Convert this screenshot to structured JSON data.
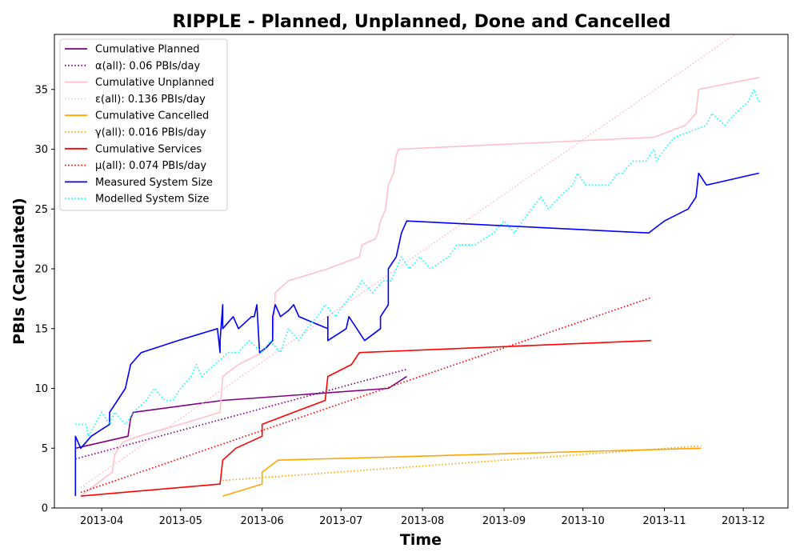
{
  "chart_data": {
    "type": "line",
    "title": "RIPPLE - Planned, Unplanned, Done  and Cancelled",
    "xlabel": "Time",
    "ylabel": "PBIs (Calculated)",
    "xlim": [
      "2013-03-14",
      "2013-12-18"
    ],
    "ylim": [
      0,
      39.6
    ],
    "x_ticks": [
      "2013-04-01",
      "2013-05-01",
      "2013-06-01",
      "2013-07-01",
      "2013-08-01",
      "2013-09-01",
      "2013-10-01",
      "2013-11-01",
      "2013-12-01"
    ],
    "x_tick_labels": [
      "2013-04",
      "2013-05",
      "2013-06",
      "2013-07",
      "2013-08",
      "2013-09",
      "2013-10",
      "2013-11",
      "2013-12"
    ],
    "y_ticks": [
      0,
      5,
      10,
      15,
      20,
      25,
      30,
      35
    ],
    "y_tick_labels": [
      "0",
      "5",
      "10",
      "15",
      "20",
      "25",
      "30",
      "35"
    ],
    "grid": false,
    "legend_position": "top-left",
    "series": [
      {
        "name": "Cumulative Planned",
        "color": "#800080",
        "dash": "solid",
        "points": [
          [
            "2013-03-22",
            5
          ],
          [
            "2013-04-01",
            5.5
          ],
          [
            "2013-04-11",
            6
          ],
          [
            "2013-04-12",
            7.5
          ],
          [
            "2013-04-13",
            8
          ],
          [
            "2013-05-17",
            9
          ],
          [
            "2013-07-19",
            10
          ],
          [
            "2013-07-26",
            11
          ]
        ]
      },
      {
        "name": "α(all): 0.06 PBIs/day",
        "color": "#800080",
        "dash": "dotted",
        "points": [
          [
            "2013-03-22",
            4.1
          ],
          [
            "2013-07-26",
            11.6
          ]
        ]
      },
      {
        "name": "Cumulative Unplanned",
        "color": "#ffc0cb",
        "dash": "solid",
        "points": [
          [
            "2013-03-24",
            1
          ],
          [
            "2013-04-05",
            3
          ],
          [
            "2013-04-06",
            4.5
          ],
          [
            "2013-04-09",
            5.5
          ],
          [
            "2013-04-15",
            6
          ],
          [
            "2013-05-01",
            7
          ],
          [
            "2013-05-16",
            8
          ],
          [
            "2013-05-17",
            11
          ],
          [
            "2013-05-23",
            12
          ],
          [
            "2013-06-01",
            13
          ],
          [
            "2013-06-05",
            14
          ],
          [
            "2013-06-06",
            18
          ],
          [
            "2013-06-11",
            19
          ],
          [
            "2013-06-26",
            20
          ],
          [
            "2013-07-08",
            21
          ],
          [
            "2013-07-09",
            22
          ],
          [
            "2013-07-14",
            22.5
          ],
          [
            "2013-07-15",
            23
          ],
          [
            "2013-07-16",
            24
          ],
          [
            "2013-07-18",
            25
          ],
          [
            "2013-07-19",
            27
          ],
          [
            "2013-07-21",
            28
          ],
          [
            "2013-07-22",
            29.5
          ],
          [
            "2013-07-23",
            30
          ],
          [
            "2013-10-28",
            31
          ],
          [
            "2013-11-09",
            32
          ],
          [
            "2013-11-13",
            33
          ],
          [
            "2013-11-14",
            35
          ],
          [
            "2013-12-07",
            36
          ]
        ]
      },
      {
        "name": "ε(all): 0.136 PBIs/day",
        "color": "#ffc0cb",
        "dash": "dotted",
        "points": [
          [
            "2013-03-24",
            1.7
          ],
          [
            "2013-12-07",
            41
          ]
        ]
      },
      {
        "name": "Cumulative Cancelled",
        "color": "#ffa500",
        "dash": "solid",
        "points": [
          [
            "2013-05-17",
            1
          ],
          [
            "2013-06-01",
            2
          ],
          [
            "2013-06-01",
            3
          ],
          [
            "2013-06-07",
            4
          ],
          [
            "2013-11-15",
            5
          ]
        ]
      },
      {
        "name": "γ(all): 0.016 PBIs/day",
        "color": "#ffa500",
        "dash": "dotted",
        "points": [
          [
            "2013-05-17",
            2.3
          ],
          [
            "2013-11-15",
            5.2
          ]
        ]
      },
      {
        "name": "Cumulative Services",
        "color": "#ff0000",
        "dash": "solid",
        "points": [
          [
            "2013-03-24",
            1
          ],
          [
            "2013-05-16",
            2
          ],
          [
            "2013-05-17",
            4
          ],
          [
            "2013-05-22",
            5
          ],
          [
            "2013-06-01",
            6
          ],
          [
            "2013-06-01",
            7
          ],
          [
            "2013-06-13",
            8
          ],
          [
            "2013-06-25",
            9
          ],
          [
            "2013-06-26",
            11
          ],
          [
            "2013-07-05",
            12
          ],
          [
            "2013-07-08",
            13
          ],
          [
            "2013-10-27",
            14
          ]
        ]
      },
      {
        "name": "μ(all): 0.074 PBIs/day",
        "color": "#ff0000",
        "dash": "dotted",
        "points": [
          [
            "2013-03-24",
            1.3
          ],
          [
            "2013-10-27",
            17.6
          ]
        ]
      },
      {
        "name": "Measured System Size",
        "color": "#0000ff",
        "dash": "solid",
        "points": [
          [
            "2013-03-22",
            1
          ],
          [
            "2013-03-22",
            6
          ],
          [
            "2013-03-24",
            5
          ],
          [
            "2013-03-28",
            6
          ],
          [
            "2013-04-04",
            7
          ],
          [
            "2013-04-04",
            8
          ],
          [
            "2013-04-07",
            9
          ],
          [
            "2013-04-10",
            10
          ],
          [
            "2013-04-11",
            11
          ],
          [
            "2013-04-12",
            12
          ],
          [
            "2013-04-16",
            13
          ],
          [
            "2013-04-30",
            14
          ],
          [
            "2013-05-15",
            15
          ],
          [
            "2013-05-16",
            13
          ],
          [
            "2013-05-16",
            14
          ],
          [
            "2013-05-17",
            17
          ],
          [
            "2013-05-17",
            15
          ],
          [
            "2013-05-21",
            16
          ],
          [
            "2013-05-23",
            15
          ],
          [
            "2013-05-28",
            16
          ],
          [
            "2013-05-29",
            16
          ],
          [
            "2013-05-30",
            17
          ],
          [
            "2013-05-31",
            13
          ],
          [
            "2013-06-03",
            13.5
          ],
          [
            "2013-06-05",
            14
          ],
          [
            "2013-06-05",
            16
          ],
          [
            "2013-06-06",
            17
          ],
          [
            "2013-06-08",
            16
          ],
          [
            "2013-06-11",
            16.5
          ],
          [
            "2013-06-13",
            17
          ],
          [
            "2013-06-15",
            16
          ],
          [
            "2013-06-26",
            15
          ],
          [
            "2013-06-26",
            16
          ],
          [
            "2013-06-26",
            14
          ],
          [
            "2013-07-03",
            15
          ],
          [
            "2013-07-04",
            16
          ],
          [
            "2013-07-07",
            15
          ],
          [
            "2013-07-10",
            14
          ],
          [
            "2013-07-16",
            15
          ],
          [
            "2013-07-16",
            16
          ],
          [
            "2013-07-19",
            17
          ],
          [
            "2013-07-19",
            20
          ],
          [
            "2013-07-22",
            21
          ],
          [
            "2013-07-23",
            22
          ],
          [
            "2013-07-24",
            23
          ],
          [
            "2013-07-26",
            24
          ],
          [
            "2013-10-26",
            23
          ],
          [
            "2013-11-01",
            24
          ],
          [
            "2013-11-10",
            25
          ],
          [
            "2013-11-13",
            26
          ],
          [
            "2013-11-14",
            28
          ],
          [
            "2013-11-17",
            27
          ],
          [
            "2013-12-07",
            28
          ]
        ]
      },
      {
        "name": "Modelled System Size",
        "color": "#00ffff",
        "dash": "dotted",
        "points": [
          [
            "2013-03-22",
            7
          ],
          [
            "2013-03-26",
            7
          ],
          [
            "2013-03-27",
            6
          ],
          [
            "2013-04-01",
            8
          ],
          [
            "2013-04-04",
            7
          ],
          [
            "2013-04-06",
            8
          ],
          [
            "2013-04-10",
            7
          ],
          [
            "2013-04-13",
            8
          ],
          [
            "2013-04-18",
            9
          ],
          [
            "2013-04-21",
            10
          ],
          [
            "2013-04-25",
            9
          ],
          [
            "2013-04-28",
            9
          ],
          [
            "2013-05-01",
            10
          ],
          [
            "2013-05-05",
            11
          ],
          [
            "2013-05-07",
            12
          ],
          [
            "2013-05-09",
            11
          ],
          [
            "2013-05-14",
            12
          ],
          [
            "2013-05-19",
            13
          ],
          [
            "2013-05-23",
            13
          ],
          [
            "2013-05-27",
            14
          ],
          [
            "2013-06-01",
            13
          ],
          [
            "2013-06-04",
            14
          ],
          [
            "2013-06-08",
            13
          ],
          [
            "2013-06-11",
            15
          ],
          [
            "2013-06-15",
            14
          ],
          [
            "2013-06-18",
            15
          ],
          [
            "2013-06-22",
            16
          ],
          [
            "2013-06-25",
            17
          ],
          [
            "2013-06-29",
            16
          ],
          [
            "2013-07-02",
            17
          ],
          [
            "2013-07-06",
            18
          ],
          [
            "2013-07-09",
            19
          ],
          [
            "2013-07-13",
            18
          ],
          [
            "2013-07-17",
            19
          ],
          [
            "2013-07-20",
            19
          ],
          [
            "2013-07-24",
            21
          ],
          [
            "2013-07-27",
            20
          ],
          [
            "2013-07-31",
            21
          ],
          [
            "2013-08-04",
            20
          ],
          [
            "2013-08-11",
            21
          ],
          [
            "2013-08-14",
            22
          ],
          [
            "2013-08-21",
            22
          ],
          [
            "2013-08-28",
            23
          ],
          [
            "2013-09-01",
            24
          ],
          [
            "2013-09-05",
            23
          ],
          [
            "2013-09-08",
            24
          ],
          [
            "2013-09-15",
            26
          ],
          [
            "2013-09-18",
            25
          ],
          [
            "2013-09-22",
            26
          ],
          [
            "2013-09-27",
            27
          ],
          [
            "2013-09-29",
            28
          ],
          [
            "2013-10-02",
            27
          ],
          [
            "2013-10-11",
            27
          ],
          [
            "2013-10-14",
            28
          ],
          [
            "2013-10-16",
            28
          ],
          [
            "2013-10-20",
            29
          ],
          [
            "2013-10-25",
            29
          ],
          [
            "2013-10-28",
            30
          ],
          [
            "2013-10-29",
            29
          ],
          [
            "2013-11-01",
            30
          ],
          [
            "2013-11-05",
            31
          ],
          [
            "2013-11-17",
            32
          ],
          [
            "2013-11-19",
            33
          ],
          [
            "2013-11-24",
            32
          ],
          [
            "2013-11-28",
            33
          ],
          [
            "2013-12-03",
            34
          ],
          [
            "2013-12-05",
            35
          ],
          [
            "2013-12-07",
            34
          ]
        ]
      }
    ]
  }
}
